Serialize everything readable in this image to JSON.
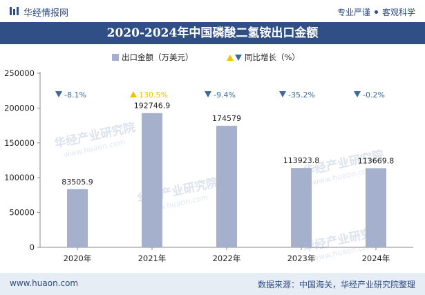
{
  "header": {
    "site_name": "华经情报网",
    "tagline_left": "专业严谨",
    "tagline_right": "客观科学"
  },
  "colors": {
    "brand": "#2f4f86",
    "bar": "#a4b0cc",
    "down": "#3d6a9a",
    "up": "#f2c200",
    "up_text": "#f2c200",
    "axis_text": "#222222"
  },
  "chart_data": {
    "type": "bar",
    "title": "2020-2024年中国磷酸二氢铵出口金额",
    "categories": [
      "2020年",
      "2021年",
      "2022年",
      "2023年",
      "2024年"
    ],
    "series": [
      {
        "name": "出口金额（万美元）",
        "type": "bar",
        "values": [
          83505.9,
          192746.9,
          174579,
          113923.8,
          113669.8
        ],
        "labels": [
          "83505.9",
          "192746.9",
          "174579",
          "113923.8",
          "113669.8"
        ]
      },
      {
        "name": "同比增长（%）",
        "type": "annotation",
        "values": [
          -8.1,
          130.5,
          -9.4,
          -35.2,
          -0.2
        ],
        "labels": [
          "-8.1%",
          "130.5%",
          "-9.4%",
          "-35.2%",
          "-0.2%"
        ]
      }
    ],
    "ylim": [
      0,
      250000
    ],
    "yticks": [
      0,
      50000,
      100000,
      150000,
      200000,
      250000
    ],
    "ytick_labels": [
      "0",
      "50000",
      "100000",
      "150000",
      "200000",
      "250000"
    ],
    "legend_position": "top",
    "grid": false
  },
  "watermark": {
    "text_cn": "华经产业研究院",
    "text_url": "www.huaon.com"
  },
  "footer": {
    "website": "www.huaon.com",
    "source": "数据来源：中国海关，华经产业研究院整理"
  }
}
